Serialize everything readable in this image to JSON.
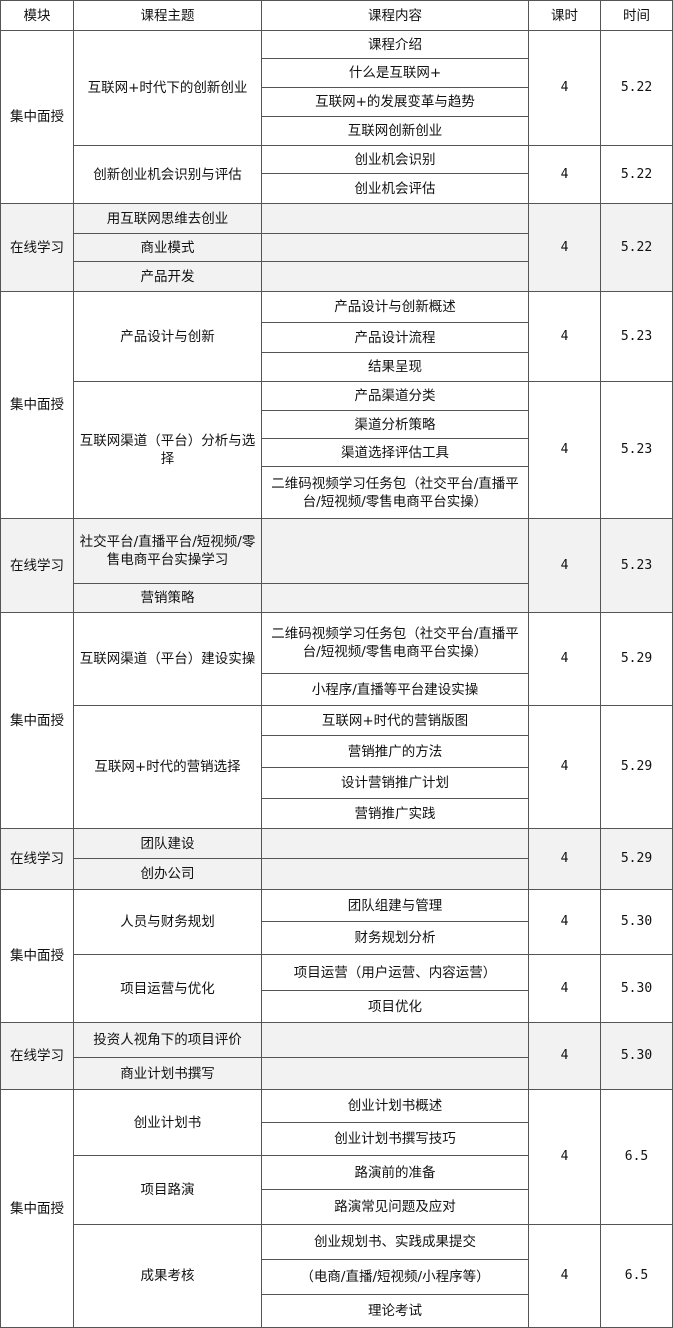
{
  "table": {
    "header": [
      "模块",
      "课程主题",
      "课程内容",
      "课时",
      "时间"
    ],
    "blocks": [
      {
        "module": "集中面授",
        "groups": [
          {
            "hours": 4,
            "time": "5.22",
            "topics": [
              {
                "title": "互联网+时代下的创新创业",
                "contents": [
                  "课程介绍",
                  "什么是互联网+",
                  "互联网+的发展变革与趋势",
                  "互联网创新创业"
                ]
              }
            ]
          },
          {
            "hours": 4,
            "time": "5.22",
            "topics": [
              {
                "title": "创新创业机会识别与评估",
                "contents": [
                  "创业机会识别",
                  "创业机会评估"
                ]
              }
            ]
          }
        ]
      },
      {
        "module": "在线学习",
        "groups": [
          {
            "hours": 4,
            "time": "5.22",
            "topics": [
              {
                "title": "用互联网思维去创业"
              },
              {
                "title": "商业模式"
              },
              {
                "title": "产品开发"
              }
            ]
          }
        ]
      },
      {
        "module": "集中面授",
        "groups": [
          {
            "hours": 4,
            "time": "5.23",
            "topics": [
              {
                "title": "产品设计与创新",
                "contents": [
                  "产品设计与创新概述",
                  "产品设计流程",
                  "结果呈现"
                ]
              }
            ]
          },
          {
            "hours": 4,
            "time": "5.23",
            "topics": [
              {
                "title": "互联网渠道（平台）分析与选择",
                "contents": [
                  "产品渠道分类",
                  "渠道分析策略",
                  "渠道选择评估工具",
                  "二维码视频学习任务包（社交平台/直播平台/短视频/零售电商平台实操）"
                ]
              }
            ]
          }
        ]
      },
      {
        "module": "在线学习",
        "groups": [
          {
            "hours": 4,
            "time": "5.23",
            "topics": [
              {
                "title": "社交平台/直播平台/短视频/零售电商平台实操学习"
              },
              {
                "title": "营销策略"
              }
            ]
          }
        ]
      },
      {
        "module": "集中面授",
        "groups": [
          {
            "hours": 4,
            "time": "5.29",
            "topics": [
              {
                "title": "互联网渠道（平台）建设实操",
                "contents": [
                  "二维码视频学习任务包（社交平台/直播平台/短视频/零售电商平台实操）",
                  "小程序/直播等平台建设实操"
                ]
              }
            ]
          },
          {
            "hours": 4,
            "time": "5.29",
            "topics": [
              {
                "title": "互联网+时代的营销选择",
                "contents": [
                  "互联网+时代的营销版图",
                  "营销推广的方法",
                  "设计营销推广计划",
                  "营销推广实践"
                ]
              }
            ]
          }
        ]
      },
      {
        "module": "在线学习",
        "groups": [
          {
            "hours": 4,
            "time": "5.29",
            "topics": [
              {
                "title": "团队建设"
              },
              {
                "title": "创办公司"
              }
            ]
          }
        ]
      },
      {
        "module": "集中面授",
        "groups": [
          {
            "hours": 4,
            "time": "5.30",
            "topics": [
              {
                "title": "人员与财务规划",
                "contents": [
                  "团队组建与管理",
                  "财务规划分析"
                ]
              }
            ]
          },
          {
            "hours": 4,
            "time": "5.30",
            "topics": [
              {
                "title": "项目运营与优化",
                "contents": [
                  "项目运营（用户运营、内容运营）",
                  "项目优化"
                ]
              }
            ]
          }
        ]
      },
      {
        "module": "在线学习",
        "groups": [
          {
            "hours": 4,
            "time": "5.30",
            "topics": [
              {
                "title": "投资人视角下的项目评价"
              },
              {
                "title": "商业计划书撰写"
              }
            ]
          }
        ]
      },
      {
        "module": "集中面授",
        "groups": [
          {
            "hours": 4,
            "time": "6.5",
            "topics": [
              {
                "title": "创业计划书",
                "contents": [
                  "创业计划书概述",
                  "创业计划书撰写技巧"
                ]
              },
              {
                "title": "项目路演",
                "contents": [
                  "路演前的准备",
                  "路演常见问题及应对"
                ]
              }
            ]
          },
          {
            "hours": 4,
            "time": "6.5",
            "topics": [
              {
                "title": "成果考核",
                "contents": [
                  "创业规划书、实践成果提交",
                  "（电商/直播/短视频/小程序等）",
                  "理论考试"
                ]
              }
            ]
          }
        ]
      }
    ]
  }
}
